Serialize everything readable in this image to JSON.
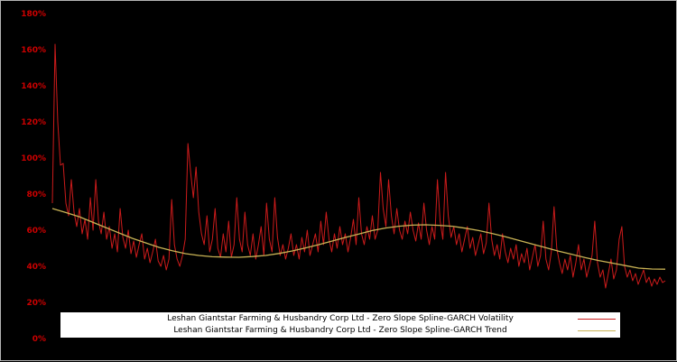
{
  "figure": {
    "background": "#000000",
    "border_color": "#b4b4b4"
  },
  "axis": {
    "tick_color": "#cc0000",
    "ytick_labels": [
      "0%",
      "20%",
      "40%",
      "60%",
      "80%",
      "100%",
      "120%",
      "140%",
      "160%",
      "180%"
    ]
  },
  "chart_data": {
    "type": "line",
    "title": "",
    "xlabel": "",
    "ylabel": "",
    "ylim": [
      0,
      180
    ],
    "y_unit": "%",
    "yticks": [
      0,
      20,
      40,
      60,
      80,
      100,
      120,
      140,
      160,
      180
    ],
    "grid": false,
    "legend_position": "bottom-center",
    "background": "#000000",
    "series": [
      {
        "name": "Leshan Giantstar Farming & Husbandry Corp Ltd - Zero Slope Spline-GARCH Volatility",
        "color": "#cc1b1b",
        "values": [
          75,
          163,
          120,
          96,
          97,
          75,
          68,
          88,
          70,
          62,
          72,
          58,
          66,
          55,
          78,
          60,
          88,
          65,
          58,
          70,
          55,
          62,
          50,
          58,
          48,
          72,
          56,
          50,
          60,
          47,
          54,
          45,
          52,
          58,
          44,
          50,
          42,
          48,
          55,
          43,
          40,
          46,
          38,
          44,
          77,
          52,
          44,
          40,
          46,
          55,
          108,
          92,
          78,
          95,
          70,
          58,
          52,
          68,
          48,
          55,
          72,
          50,
          45,
          58,
          48,
          65,
          45,
          52,
          78,
          55,
          48,
          70,
          52,
          46,
          58,
          44,
          52,
          62,
          46,
          75,
          55,
          48,
          78,
          56,
          46,
          52,
          44,
          50,
          58,
          46,
          52,
          44,
          56,
          48,
          60,
          46,
          52,
          58,
          48,
          65,
          52,
          70,
          55,
          48,
          58,
          50,
          62,
          52,
          58,
          48,
          56,
          66,
          52,
          78,
          58,
          52,
          62,
          55,
          68,
          55,
          60,
          92,
          72,
          62,
          88,
          68,
          58,
          72,
          60,
          55,
          65,
          58,
          70,
          60,
          54,
          64,
          55,
          75,
          60,
          52,
          62,
          55,
          88,
          65,
          55,
          92,
          68,
          56,
          62,
          52,
          58,
          48,
          55,
          62,
          50,
          56,
          46,
          52,
          58,
          47,
          53,
          75,
          55,
          46,
          52,
          44,
          58,
          48,
          42,
          50,
          44,
          52,
          40,
          47,
          42,
          50,
          38,
          45,
          52,
          40,
          46,
          65,
          44,
          38,
          48,
          73,
          50,
          42,
          36,
          44,
          38,
          46,
          34,
          42,
          52,
          38,
          44,
          34,
          40,
          46,
          65,
          42,
          34,
          38,
          28,
          36,
          44,
          33,
          38,
          55,
          62,
          40,
          34,
          38,
          32,
          36,
          30,
          34,
          38,
          31,
          34,
          29,
          33,
          30,
          34,
          31,
          32
        ]
      },
      {
        "name": "Leshan Giantstar Farming & Husbandry Corp Ltd - Zero Slope Spline-GARCH Trend",
        "color": "#c9b355",
        "values": [
          72,
          69.8,
          67.5,
          64.5,
          61.5,
          58.5,
          55.5,
          53,
          50.5,
          48.6,
          47,
          46,
          45.3,
          45.1,
          45,
          45.4,
          46,
          47.1,
          48.5,
          50.2,
          52,
          54,
          56,
          57.9,
          59.8,
          61.2,
          62.2,
          62.8,
          63,
          62.7,
          62.2,
          61.1,
          59.8,
          58.2,
          56.4,
          54.4,
          52.4,
          50.4,
          48.4,
          46.6,
          44.8,
          43.2,
          41.8,
          40.4,
          39,
          38.5,
          38.4
        ]
      }
    ]
  }
}
